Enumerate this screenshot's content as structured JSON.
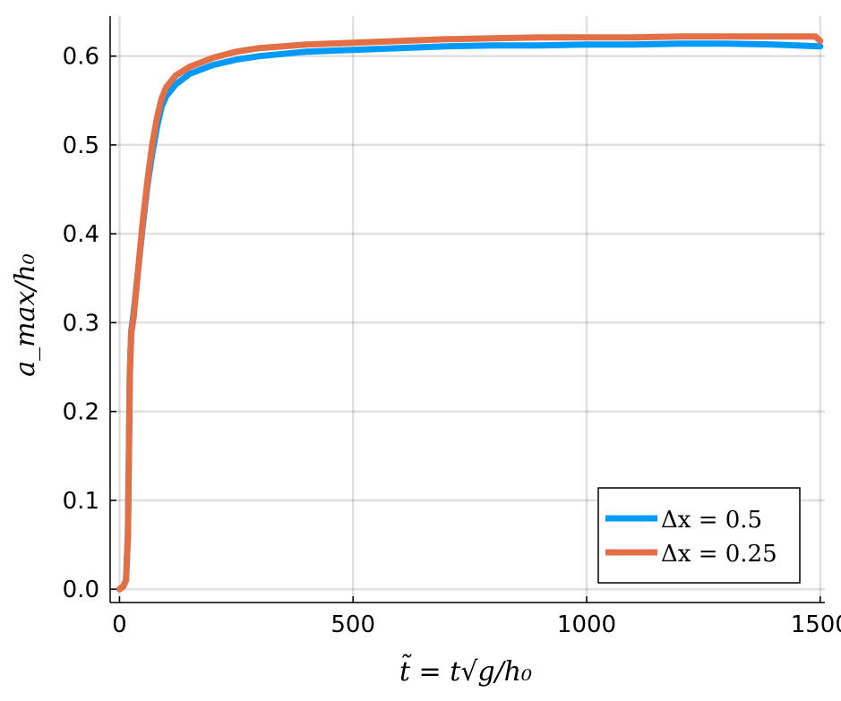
{
  "chart_data": {
    "type": "line",
    "title": "",
    "xlabel": "t̃ = t√g/h₀",
    "ylabel": "a_max/h₀",
    "xlim": [
      -20,
      1510
    ],
    "ylim": [
      -0.015,
      0.645
    ],
    "x_ticks": [
      0,
      500,
      1000,
      1500
    ],
    "x_tick_labels": [
      "0",
      "500",
      "1000",
      "1500"
    ],
    "y_ticks": [
      0.0,
      0.1,
      0.2,
      0.3,
      0.4,
      0.5,
      0.6
    ],
    "y_tick_labels": [
      "0.0",
      "0.1",
      "0.2",
      "0.3",
      "0.4",
      "0.5",
      "0.6"
    ],
    "grid": true,
    "legend_position": "bottom-right",
    "series": [
      {
        "name": "Δx = 0.5",
        "color": "#009AFA",
        "x": [
          0,
          8,
          14,
          18,
          20,
          22,
          25,
          30,
          40,
          50,
          60,
          70,
          80,
          90,
          100,
          120,
          150,
          200,
          250,
          300,
          400,
          500,
          600,
          700,
          800,
          900,
          1000,
          1100,
          1200,
          1300,
          1400,
          1500
        ],
        "y": [
          0.0,
          0.003,
          0.01,
          0.06,
          0.15,
          0.24,
          0.29,
          0.31,
          0.36,
          0.41,
          0.455,
          0.49,
          0.52,
          0.543,
          0.555,
          0.568,
          0.58,
          0.59,
          0.596,
          0.6,
          0.605,
          0.607,
          0.609,
          0.611,
          0.612,
          0.612,
          0.613,
          0.613,
          0.614,
          0.614,
          0.613,
          0.611
        ]
      },
      {
        "name": "Δx = 0.25",
        "color": "#E26F46",
        "x": [
          0,
          8,
          14,
          18,
          20,
          22,
          25,
          30,
          40,
          50,
          60,
          70,
          80,
          90,
          100,
          120,
          150,
          200,
          250,
          300,
          400,
          500,
          600,
          700,
          800,
          900,
          1000,
          1100,
          1200,
          1300,
          1400,
          1490,
          1500
        ],
        "y": [
          0.0,
          0.003,
          0.01,
          0.06,
          0.15,
          0.24,
          0.288,
          0.305,
          0.36,
          0.415,
          0.46,
          0.5,
          0.53,
          0.552,
          0.565,
          0.578,
          0.588,
          0.598,
          0.605,
          0.609,
          0.613,
          0.615,
          0.617,
          0.619,
          0.62,
          0.621,
          0.621,
          0.621,
          0.622,
          0.622,
          0.622,
          0.622,
          0.617
        ]
      }
    ]
  }
}
